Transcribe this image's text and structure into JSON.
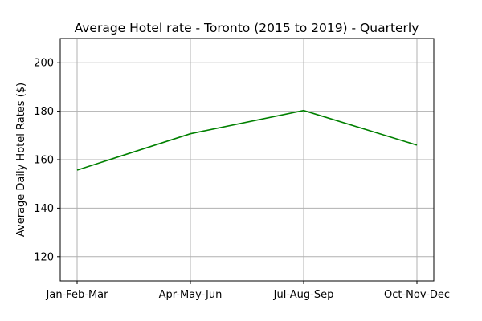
{
  "chart_data": {
    "type": "line",
    "title": "Average Hotel rate - Toronto (2015 to 2019) - Quarterly",
    "xlabel": "",
    "ylabel": "Average Daily Hotel Rates ($)",
    "categories": [
      "Jan-Feb-Mar",
      "Apr-May-Jun",
      "Jul-Aug-Sep",
      "Oct-Nov-Dec"
    ],
    "series": [
      {
        "values": [
          155.7,
          170.7,
          180.3,
          166.0
        ],
        "color": "#008000"
      }
    ],
    "ylim": [
      110,
      210
    ],
    "yticks": [
      120,
      140,
      160,
      180,
      200
    ],
    "grid": true,
    "legend": "none"
  }
}
